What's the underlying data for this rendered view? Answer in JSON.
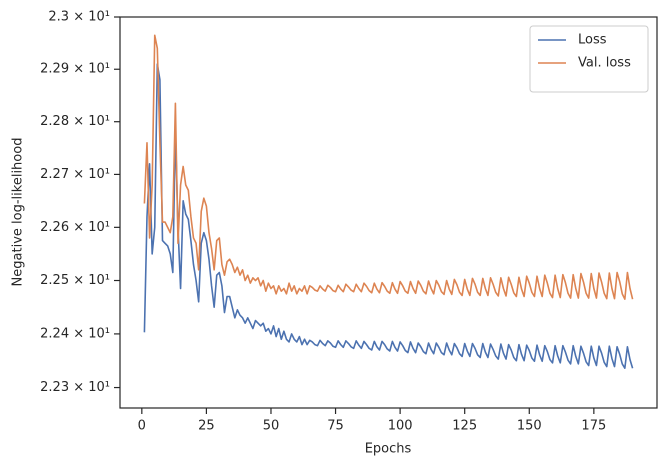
{
  "chart_data": {
    "type": "line",
    "xlabel": "Epochs",
    "ylabel": "Negative log-likelihood",
    "yscale": "log",
    "legend": "upper right",
    "xlim": [
      -8.45,
      199.45
    ],
    "xticks": [
      0,
      25,
      50,
      75,
      100,
      125,
      150,
      175
    ],
    "ylim": [
      22.262,
      23.0
    ],
    "yticks": [
      {
        "value": 22.3,
        "label": "2.23 × 10¹"
      },
      {
        "value": 22.4,
        "label": "2.24 × 10¹"
      },
      {
        "value": 22.5,
        "label": "2.25 × 10¹"
      },
      {
        "value": 22.6,
        "label": "2.26 × 10¹"
      },
      {
        "value": 22.7,
        "label": "2.27 × 10¹"
      },
      {
        "value": 22.8,
        "label": "2.28 × 10¹"
      },
      {
        "value": 22.9,
        "label": "2.29 × 10¹"
      },
      {
        "value": 23.0,
        "label": "2.3 × 10¹"
      }
    ],
    "x": [
      1,
      2,
      3,
      4,
      5,
      6,
      7,
      8,
      9,
      10,
      11,
      12,
      13,
      14,
      15,
      16,
      17,
      18,
      19,
      20,
      21,
      22,
      23,
      24,
      25,
      26,
      27,
      28,
      29,
      30,
      31,
      32,
      33,
      34,
      35,
      36,
      37,
      38,
      39,
      40,
      41,
      42,
      43,
      44,
      45,
      46,
      47,
      48,
      49,
      50,
      51,
      52,
      53,
      54,
      55,
      56,
      57,
      58,
      59,
      60,
      61,
      62,
      63,
      64,
      65,
      66,
      67,
      68,
      69,
      70,
      71,
      72,
      73,
      74,
      75,
      76,
      77,
      78,
      79,
      80,
      81,
      82,
      83,
      84,
      85,
      86,
      87,
      88,
      89,
      90,
      91,
      92,
      93,
      94,
      95,
      96,
      97,
      98,
      99,
      100,
      101,
      102,
      103,
      104,
      105,
      106,
      107,
      108,
      109,
      110,
      111,
      112,
      113,
      114,
      115,
      116,
      117,
      118,
      119,
      120,
      121,
      122,
      123,
      124,
      125,
      126,
      127,
      128,
      129,
      130,
      131,
      132,
      133,
      134,
      135,
      136,
      137,
      138,
      139,
      140,
      141,
      142,
      143,
      144,
      145,
      146,
      147,
      148,
      149,
      150,
      151,
      152,
      153,
      154,
      155,
      156,
      157,
      158,
      159,
      160,
      161,
      162,
      163,
      164,
      165,
      166,
      167,
      168,
      169,
      170,
      171,
      172,
      173,
      174,
      175,
      176,
      177,
      178,
      179,
      180,
      181,
      182,
      183,
      184,
      185,
      186,
      187,
      188,
      189,
      190
    ],
    "series": [
      {
        "name": "Loss",
        "color": "#4c72b0",
        "values": [
          22.403,
          22.62,
          22.72,
          22.55,
          22.6,
          22.91,
          22.88,
          22.575,
          22.57,
          22.565,
          22.55,
          22.515,
          22.785,
          22.6,
          22.485,
          22.65,
          22.625,
          22.615,
          22.575,
          22.53,
          22.5,
          22.46,
          22.57,
          22.59,
          22.575,
          22.54,
          22.49,
          22.45,
          22.51,
          22.515,
          22.49,
          22.44,
          22.47,
          22.47,
          22.45,
          22.43,
          22.445,
          22.435,
          22.43,
          22.42,
          22.43,
          22.42,
          22.41,
          22.425,
          22.42,
          22.415,
          22.42,
          22.405,
          22.41,
          22.4,
          22.415,
          22.395,
          22.41,
          22.39,
          22.405,
          22.39,
          22.385,
          22.4,
          22.39,
          22.385,
          22.395,
          22.38,
          22.39,
          22.38,
          22.388,
          22.385,
          22.38,
          22.378,
          22.388,
          22.382,
          22.378,
          22.387,
          22.383,
          22.377,
          22.375,
          22.387,
          22.38,
          22.375,
          22.387,
          22.382,
          22.376,
          22.373,
          22.387,
          22.379,
          22.373,
          22.386,
          22.38,
          22.373,
          22.37,
          22.386,
          22.376,
          22.37,
          22.386,
          22.38,
          22.372,
          22.368,
          22.386,
          22.375,
          22.368,
          22.385,
          22.378,
          22.369,
          22.365,
          22.385,
          22.373,
          22.365,
          22.383,
          22.376,
          22.367,
          22.363,
          22.383,
          22.371,
          22.363,
          22.383,
          22.375,
          22.365,
          22.361,
          22.383,
          22.37,
          22.361,
          22.382,
          22.374,
          22.363,
          22.358,
          22.382,
          22.368,
          22.358,
          22.382,
          22.373,
          22.361,
          22.356,
          22.382,
          22.366,
          22.356,
          22.381,
          22.371,
          22.359,
          22.353,
          22.381,
          22.364,
          22.353,
          22.38,
          22.37,
          22.356,
          22.35,
          22.38,
          22.362,
          22.35,
          22.379,
          22.369,
          22.355,
          22.349,
          22.379,
          22.361,
          22.349,
          22.378,
          22.367,
          22.352,
          22.346,
          22.378,
          22.359,
          22.346,
          22.378,
          22.366,
          22.351,
          22.344,
          22.378,
          22.358,
          22.344,
          22.377,
          22.364,
          22.348,
          22.341,
          22.377,
          22.355,
          22.341,
          22.377,
          22.364,
          22.347,
          22.339,
          22.377,
          22.354,
          22.339,
          22.376,
          22.362,
          22.344,
          22.336,
          22.376,
          22.352,
          22.336
        ]
      },
      {
        "name": "Val. loss",
        "color": "#dd8452",
        "values": [
          22.645,
          22.76,
          22.58,
          22.68,
          22.965,
          22.94,
          22.76,
          22.61,
          22.61,
          22.6,
          22.59,
          22.62,
          22.835,
          22.57,
          22.68,
          22.715,
          22.68,
          22.67,
          22.62,
          22.58,
          22.57,
          22.52,
          22.63,
          22.655,
          22.64,
          22.59,
          22.56,
          22.52,
          22.575,
          22.58,
          22.53,
          22.51,
          22.535,
          22.54,
          22.53,
          22.515,
          22.525,
          22.51,
          22.52,
          22.5,
          22.51,
          22.495,
          22.505,
          22.5,
          22.505,
          22.49,
          22.5,
          22.48,
          22.495,
          22.485,
          22.49,
          22.475,
          22.49,
          22.48,
          22.485,
          22.475,
          22.495,
          22.48,
          22.49,
          22.475,
          22.485,
          22.48,
          22.49,
          22.475,
          22.49,
          22.487,
          22.482,
          22.48,
          22.49,
          22.484,
          22.48,
          22.491,
          22.487,
          22.481,
          22.479,
          22.491,
          22.484,
          22.479,
          22.493,
          22.488,
          22.482,
          22.479,
          22.493,
          22.485,
          22.479,
          22.495,
          22.489,
          22.481,
          22.477,
          22.495,
          22.484,
          22.477,
          22.496,
          22.489,
          22.48,
          22.476,
          22.496,
          22.484,
          22.476,
          22.498,
          22.49,
          22.48,
          22.476,
          22.498,
          22.485,
          22.476,
          22.499,
          22.491,
          22.48,
          22.475,
          22.499,
          22.485,
          22.475,
          22.5,
          22.491,
          22.479,
          22.474,
          22.5,
          22.484,
          22.474,
          22.502,
          22.492,
          22.478,
          22.472,
          22.502,
          22.484,
          22.472,
          22.504,
          22.493,
          22.478,
          22.472,
          22.504,
          22.485,
          22.472,
          22.505,
          22.493,
          22.478,
          22.471,
          22.505,
          22.485,
          22.471,
          22.506,
          22.493,
          22.477,
          22.47,
          22.506,
          22.484,
          22.47,
          22.508,
          22.495,
          22.478,
          22.47,
          22.508,
          22.485,
          22.47,
          22.51,
          22.495,
          22.476,
          22.468,
          22.51,
          22.485,
          22.468,
          22.511,
          22.496,
          22.476,
          22.467,
          22.511,
          22.485,
          22.467,
          22.513,
          22.497,
          22.476,
          22.467,
          22.513,
          22.485,
          22.467,
          22.514,
          22.497,
          22.476,
          22.466,
          22.514,
          22.485,
          22.466,
          22.515,
          22.498,
          22.475,
          22.465,
          22.515,
          22.485,
          22.465
        ]
      }
    ]
  }
}
